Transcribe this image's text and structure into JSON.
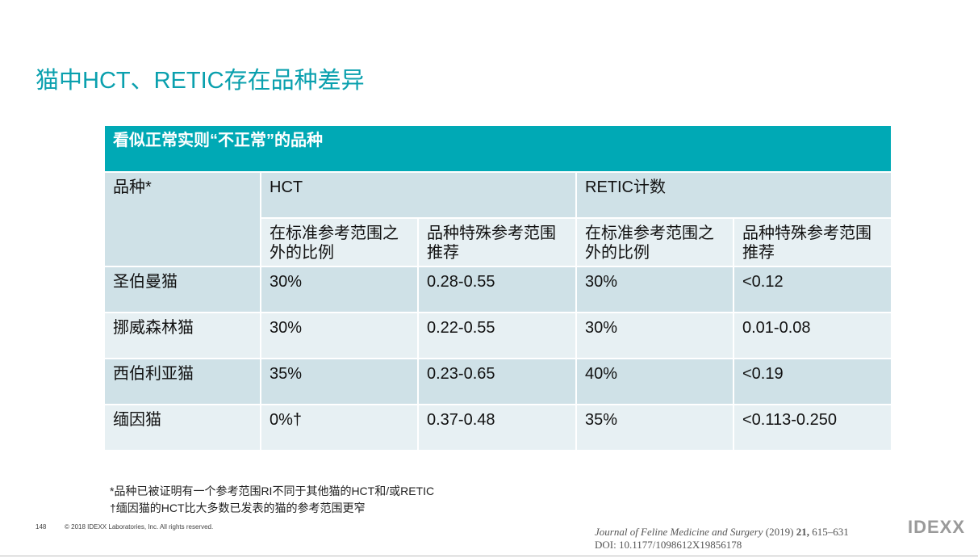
{
  "title": "猫中HCT、RETIC存在品种差异",
  "table": {
    "caption": "看似正常实则“不正常”的品种",
    "headers": [
      "品种*",
      "HCT",
      "RETIC计数"
    ],
    "subheaders": [
      "在标准参考范围之外的比例",
      "品种特殊参考范围推荐",
      "在标准参考范围之外的比例",
      "品种特殊参考范围推荐"
    ],
    "rows": [
      [
        "圣伯曼猫",
        "30%",
        "0.28-0.55",
        "30%",
        "<0.12"
      ],
      [
        "挪威森林猫",
        "30%",
        "0.22-0.55",
        "30%",
        "0.01-0.08"
      ],
      [
        "西伯利亚猫",
        "35%",
        "0.23-0.65",
        "40%",
        "<0.19"
      ],
      [
        "缅因猫",
        "0%†",
        "0.37-0.48",
        "35%",
        "<0.113-0.250"
      ]
    ]
  },
  "footnotes": [
    "*品种已被证明有一个参考范围RI不同于其他猫的HCT和/或RETIC",
    "†缅因猫的HCT比大多数已发表的猫的参考范围更窄"
  ],
  "footer": {
    "page_number": "148",
    "copyright": "© 2018 IDEXX Laboratories, Inc. All rights reserved.",
    "logo": "IDEXX"
  },
  "citation": {
    "journal": "Journal of Feline Medicine and Surgery",
    "year": "(2019)",
    "volume": "21,",
    "pages": "615–631",
    "doi": "DOI: 10.1177/1098612X19856178"
  }
}
